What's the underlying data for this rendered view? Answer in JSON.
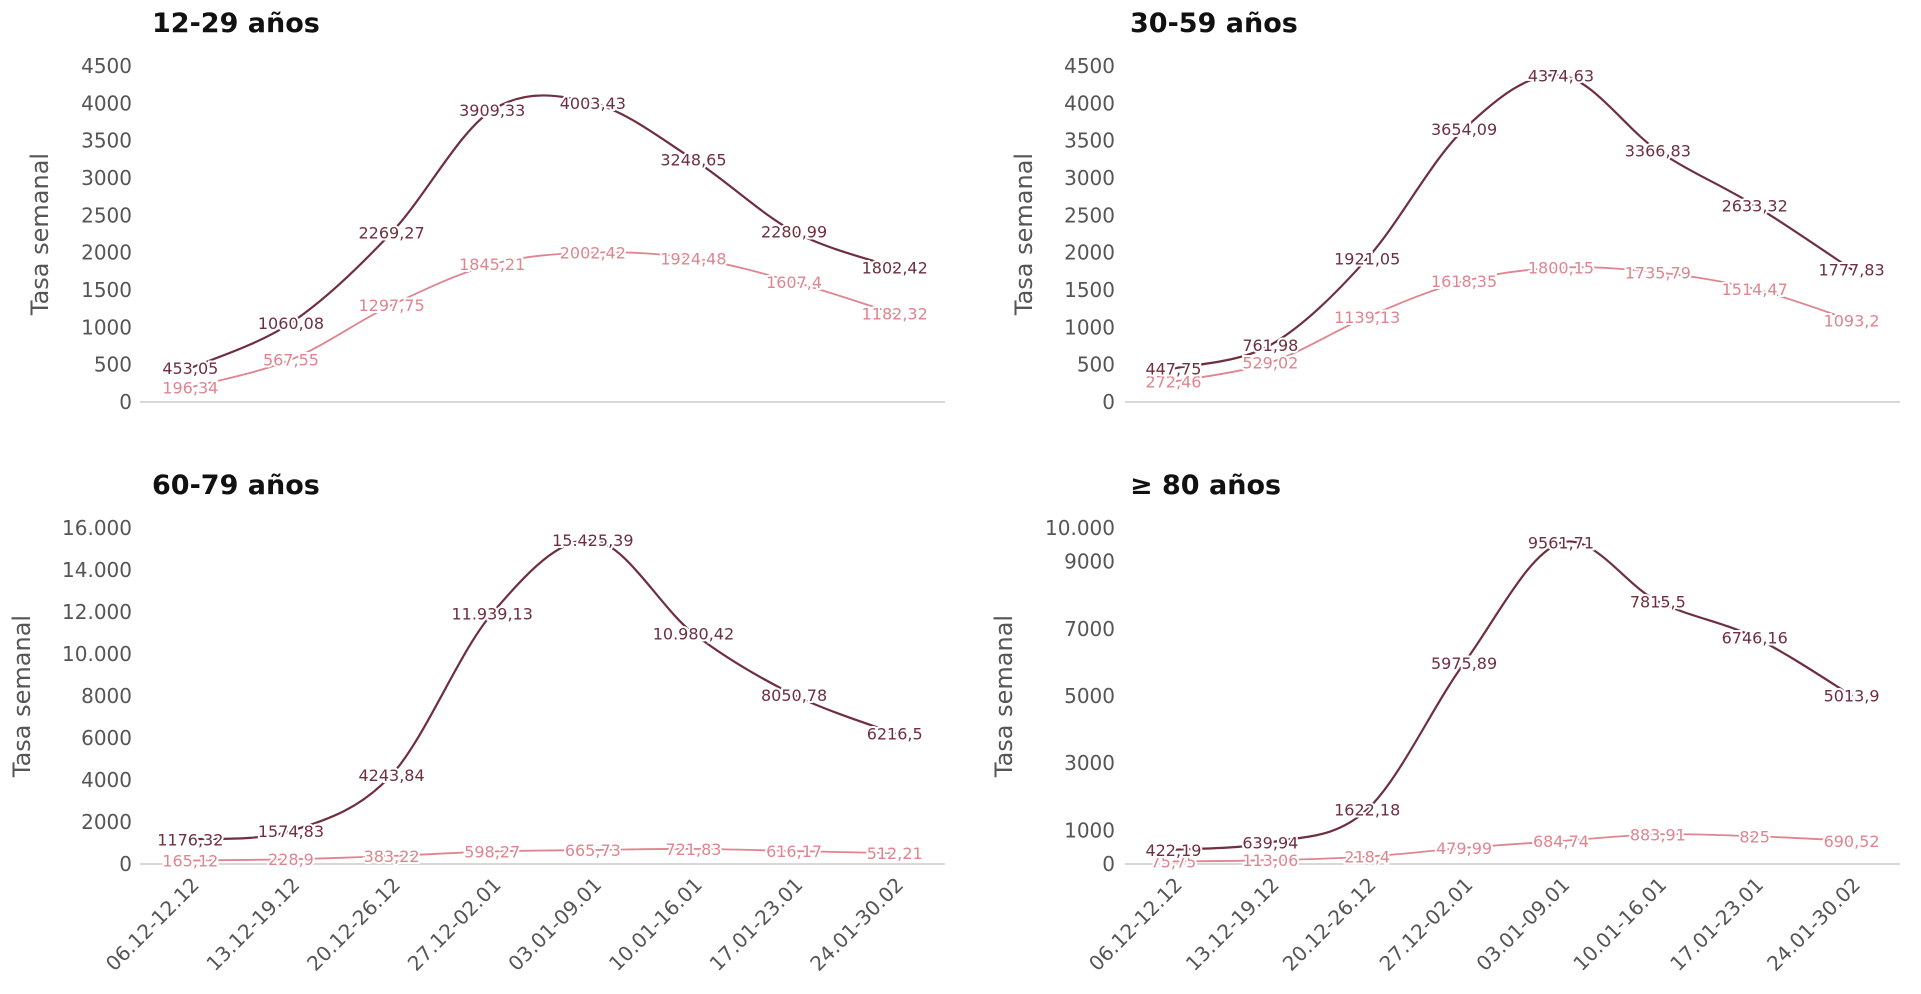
{
  "colors": {
    "dark_series": "#6e2f3e",
    "light_series": "#e0848e",
    "axis": "#cccccc",
    "tick_text": "#555555"
  },
  "chart_data": [
    {
      "type": "line",
      "title": "12-29 años",
      "ylabel": "Tasa semanal",
      "xlabel": "",
      "categories": [
        "06.12-12.12",
        "13.12-19.12",
        "20.12-26.12",
        "27.12-02.01",
        "03.01-09.01",
        "10.01-16.01",
        "17.01-23.01",
        "24.01-30.02"
      ],
      "ylim": [
        0,
        4500
      ],
      "yticks": [
        0,
        500,
        1000,
        1500,
        2000,
        2500,
        3000,
        3500,
        4000,
        4500
      ],
      "ytick_labels": [
        "0",
        "500",
        "1000",
        "1500",
        "2000",
        "2500",
        "3000",
        "3500",
        "4000",
        "4500"
      ],
      "show_xticks": false,
      "series": [
        {
          "values": [
            453.05,
            1060.08,
            2269.27,
            3909.33,
            4003.43,
            3248.65,
            2280.99,
            1802.42
          ],
          "labels": [
            "453,05",
            "1060,08",
            "2269,27",
            "3909,33",
            "4003,43",
            "3248,65",
            "2280,99",
            "1802,42"
          ]
        },
        {
          "values": [
            196.34,
            567.55,
            1297.75,
            1845.21,
            2002.42,
            1924.48,
            1607.4,
            1182.32
          ],
          "labels": [
            "196,34",
            "567,55",
            "1297,75",
            "1845,21",
            "2002,42",
            "1924,48",
            "1607,4",
            "1182,32"
          ]
        }
      ]
    },
    {
      "type": "line",
      "title": "30-59 años",
      "ylabel": "Tasa semanal",
      "xlabel": "",
      "categories": [
        "06.12-12.12",
        "13.12-19.12",
        "20.12-26.12",
        "27.12-02.01",
        "03.01-09.01",
        "10.01-16.01",
        "17.01-23.01",
        "24.01-30.02"
      ],
      "ylim": [
        0,
        4500
      ],
      "yticks": [
        0,
        500,
        1000,
        1500,
        2000,
        2500,
        3000,
        3500,
        4000,
        4500
      ],
      "ytick_labels": [
        "0",
        "500",
        "1000",
        "1500",
        "2000",
        "2500",
        "3000",
        "3500",
        "4000",
        "4500"
      ],
      "show_xticks": false,
      "series": [
        {
          "values": [
            447.75,
            761.98,
            1921.05,
            3654.09,
            4374.63,
            3366.83,
            2633.32,
            1777.83
          ],
          "labels": [
            "447,75",
            "761,98",
            "1921,05",
            "3654,09",
            "4374,63",
            "3366,83",
            "2633,32",
            "1777,83"
          ]
        },
        {
          "values": [
            272.46,
            529.02,
            1139.13,
            1618.35,
            1800.15,
            1735.79,
            1514.47,
            1093.2
          ],
          "labels": [
            "272,46",
            "529,02",
            "1139,13",
            "1618,35",
            "1800,15",
            "1735,79",
            "1514,47",
            "1093,2"
          ]
        }
      ]
    },
    {
      "type": "line",
      "title": "60-79 años",
      "ylabel": "Tasa semanal",
      "xlabel": "",
      "categories": [
        "06.12-12.12",
        "13.12-19.12",
        "20.12-26.12",
        "27.12-02.01",
        "03.01-09.01",
        "10.01-16.01",
        "17.01-23.01",
        "24.01-30.02"
      ],
      "ylim": [
        0,
        16000
      ],
      "yticks": [
        0,
        2000,
        4000,
        6000,
        8000,
        10000,
        12000,
        14000,
        16000
      ],
      "ytick_labels": [
        "0",
        "2000",
        "4000",
        "6000",
        "8000",
        "10.000",
        "12.000",
        "14.000",
        "16.000"
      ],
      "show_xticks": true,
      "series": [
        {
          "values": [
            1176.32,
            1574.83,
            4243.84,
            11939.13,
            15425.39,
            10980.42,
            8050.78,
            6216.5
          ],
          "labels": [
            "1176,32",
            "1574,83",
            "4243,84",
            "11.939,13",
            "15.425,39",
            "10.980,42",
            "8050,78",
            "6216,5"
          ]
        },
        {
          "values": [
            165.12,
            228.9,
            383.22,
            598.27,
            665.73,
            721.83,
            616.17,
            512.21
          ],
          "labels": [
            "165,12",
            "228,9",
            "383,22",
            "598,27",
            "665,73",
            "721,83",
            "616,17",
            "512,21"
          ]
        }
      ]
    },
    {
      "type": "line",
      "title": "≥ 80 años",
      "ylabel": "Tasa semanal",
      "xlabel": "",
      "categories": [
        "06.12-12.12",
        "13.12-19.12",
        "20.12-26.12",
        "27.12-02.01",
        "03.01-09.01",
        "10.01-16.01",
        "17.01-23.01",
        "24.01-30.02"
      ],
      "ylim": [
        0,
        10000
      ],
      "yticks": [
        0,
        1000,
        3000,
        5000,
        7000,
        9000,
        10000
      ],
      "ytick_labels": [
        "0",
        "1000",
        "3000",
        "5000",
        "7000",
        "9000",
        "10.000"
      ],
      "show_xticks": true,
      "series": [
        {
          "values": [
            422.19,
            639.94,
            1622.18,
            5975.89,
            9561.71,
            7815.5,
            6746.16,
            5013.9
          ],
          "labels": [
            "422,19",
            "639,94",
            "1622,18",
            "5975,89",
            "9561,71",
            "7815,5",
            "6746,16",
            "5013,9"
          ]
        },
        {
          "values": [
            75.75,
            113.06,
            218.4,
            479.99,
            684.74,
            883.91,
            825,
            690.52
          ],
          "labels": [
            "75,75",
            "113,06",
            "218,4",
            "479,99",
            "684,74",
            "883,91",
            "825",
            "690,52"
          ]
        }
      ]
    }
  ]
}
